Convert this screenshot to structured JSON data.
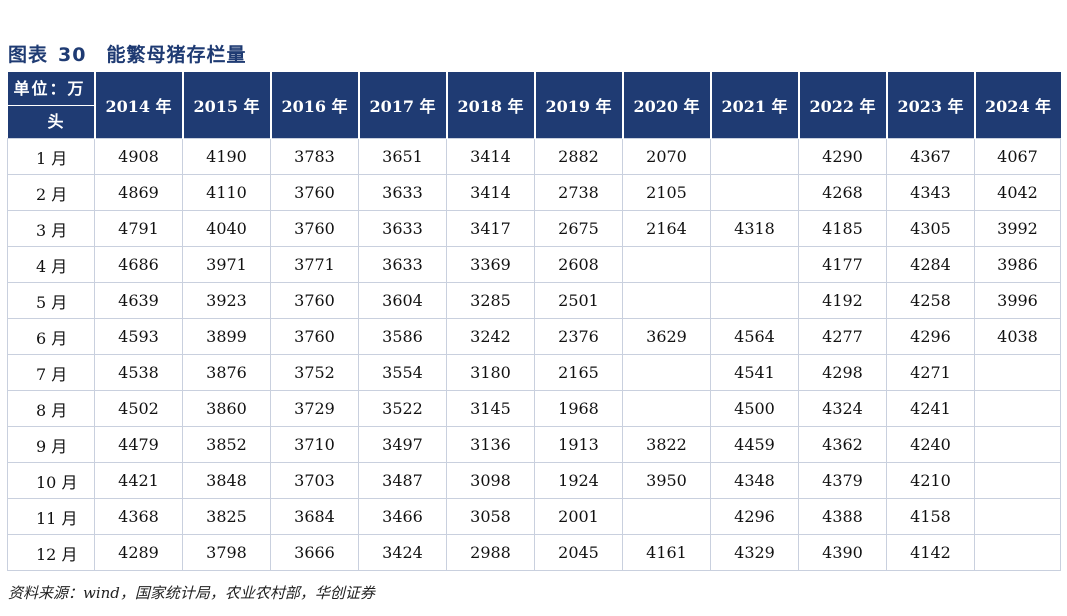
{
  "figure": {
    "label": "图表",
    "number": "30",
    "title": "能繁母猪存栏量"
  },
  "table": {
    "unit_line1": "单位：万",
    "unit_line2": "头",
    "columns": [
      "2014 年",
      "2015 年",
      "2016 年",
      "2017 年",
      "2018 年",
      "2019 年",
      "2020 年",
      "2021 年",
      "2022 年",
      "2023 年",
      "2024 年"
    ],
    "rows": [
      {
        "month": "1 月",
        "values": [
          "4908",
          "4190",
          "3783",
          "3651",
          "3414",
          "2882",
          "2070",
          "",
          "4290",
          "4367",
          "4067"
        ]
      },
      {
        "month": "2 月",
        "values": [
          "4869",
          "4110",
          "3760",
          "3633",
          "3414",
          "2738",
          "2105",
          "",
          "4268",
          "4343",
          "4042"
        ]
      },
      {
        "month": "3 月",
        "values": [
          "4791",
          "4040",
          "3760",
          "3633",
          "3417",
          "2675",
          "2164",
          "4318",
          "4185",
          "4305",
          "3992"
        ]
      },
      {
        "month": "4 月",
        "values": [
          "4686",
          "3971",
          "3771",
          "3633",
          "3369",
          "2608",
          "",
          "",
          "4177",
          "4284",
          "3986"
        ]
      },
      {
        "month": "5 月",
        "values": [
          "4639",
          "3923",
          "3760",
          "3604",
          "3285",
          "2501",
          "",
          "",
          "4192",
          "4258",
          "3996"
        ]
      },
      {
        "month": "6 月",
        "values": [
          "4593",
          "3899",
          "3760",
          "3586",
          "3242",
          "2376",
          "3629",
          "4564",
          "4277",
          "4296",
          "4038"
        ]
      },
      {
        "month": "7 月",
        "values": [
          "4538",
          "3876",
          "3752",
          "3554",
          "3180",
          "2165",
          "",
          "4541",
          "4298",
          "4271",
          ""
        ]
      },
      {
        "month": "8 月",
        "values": [
          "4502",
          "3860",
          "3729",
          "3522",
          "3145",
          "1968",
          "",
          "4500",
          "4324",
          "4241",
          ""
        ]
      },
      {
        "month": "9 月",
        "values": [
          "4479",
          "3852",
          "3710",
          "3497",
          "3136",
          "1913",
          "3822",
          "4459",
          "4362",
          "4240",
          ""
        ]
      },
      {
        "month": "10 月",
        "values": [
          "4421",
          "3848",
          "3703",
          "3487",
          "3098",
          "1924",
          "3950",
          "4348",
          "4379",
          "4210",
          ""
        ]
      },
      {
        "month": "11 月",
        "values": [
          "4368",
          "3825",
          "3684",
          "3466",
          "3058",
          "2001",
          "",
          "4296",
          "4388",
          "4158",
          ""
        ]
      },
      {
        "month": "12 月",
        "values": [
          "4289",
          "3798",
          "3666",
          "3424",
          "2988",
          "2045",
          "4161",
          "4329",
          "4390",
          "4142",
          ""
        ]
      }
    ]
  },
  "source": "资料来源：wind，国家统计局，农业农村部，华创证券",
  "colors": {
    "header_bg": "#1f3b73",
    "title_color": "#1f3b73",
    "grid": "#c9d0de"
  }
}
